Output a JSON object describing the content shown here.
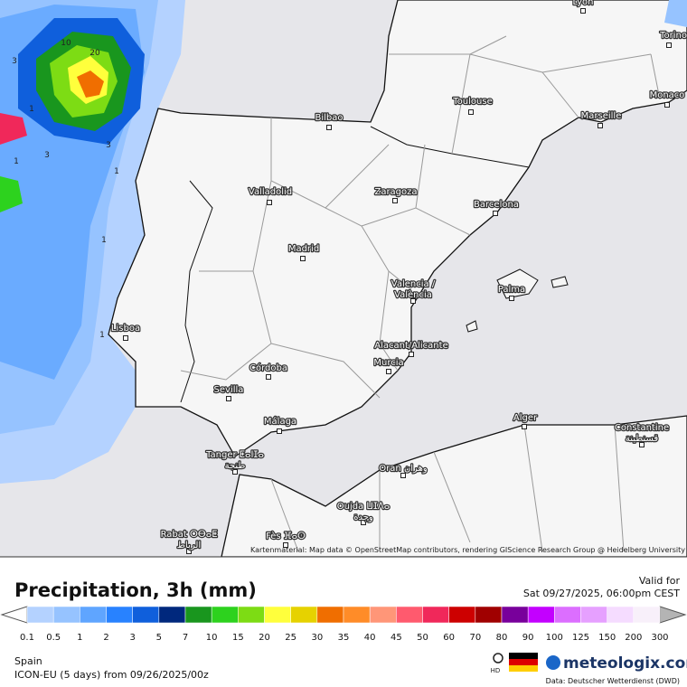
{
  "header": {
    "title": "Precipitation, 3h (mm)",
    "valid_label": "Valid for",
    "valid_time": "Sat 09/27/2025, 06:00pm CEST"
  },
  "map": {
    "cities": [
      {
        "lines": [
          "Lyon"
        ]
      },
      {
        "lines": [
          "Torino"
        ]
      },
      {
        "lines": [
          "Monaco"
        ]
      },
      {
        "lines": [
          "Toulouse"
        ]
      },
      {
        "lines": [
          "Marseille"
        ]
      },
      {
        "lines": [
          "Bilbao"
        ]
      },
      {
        "lines": [
          "Valladolid"
        ]
      },
      {
        "lines": [
          "Zaragoza"
        ]
      },
      {
        "lines": [
          "Barcelona"
        ]
      },
      {
        "lines": [
          "Madrid"
        ]
      },
      {
        "lines": [
          "Valencia /",
          "València"
        ]
      },
      {
        "lines": [
          "Palma"
        ]
      },
      {
        "lines": [
          "Lisboa"
        ]
      },
      {
        "lines": [
          "Alacant/Alicante"
        ]
      },
      {
        "lines": [
          "Murcia"
        ]
      },
      {
        "lines": [
          "Córdoba"
        ]
      },
      {
        "lines": [
          "Sevilla"
        ]
      },
      {
        "lines": [
          "Málaga"
        ]
      },
      {
        "lines": [
          "Alger"
        ]
      },
      {
        "lines": [
          "Constantine",
          "قسنطينة"
        ]
      },
      {
        "lines": [
          "Tanger ⵟⴰⵏⵊⴰ",
          "طنجة"
        ]
      },
      {
        "lines": [
          "Oran وهران"
        ]
      },
      {
        "lines": [
          "Oujda ⵡⵊⴷⴰ",
          "وجدة"
        ]
      },
      {
        "lines": [
          "Rabat ⵔⴱⴰⵟ",
          "الرباط"
        ]
      },
      {
        "lines": [
          "Fès ⴼⴰⵙ"
        ]
      }
    ],
    "contour_labels": [
      10,
      20,
      3,
      1,
      3,
      1,
      3,
      1,
      1,
      1
    ],
    "attribution": "Kartenmaterial: Map data © OpenStreetMap contributors, rendering GIScience Research Group @ Heidelberg University"
  },
  "legend": {
    "labels": [
      0.1,
      0.5,
      1,
      2,
      3,
      5,
      7,
      10,
      15,
      20,
      25,
      30,
      35,
      40,
      45,
      50,
      60,
      70,
      80,
      90,
      100,
      125,
      150,
      200,
      300
    ],
    "colors": [
      "#b4d2ff",
      "#96c3ff",
      "#5fa5ff",
      "#2882ff",
      "#0f5fdc",
      "#00287d",
      "#19961e",
      "#2dd21e",
      "#7ddc14",
      "#ffff3c",
      "#e6d200",
      "#f06e00",
      "#ff8c28",
      "#ff9678",
      "#ff5a6e",
      "#f0285a",
      "#cd0000",
      "#a00000",
      "#78009b",
      "#c300ff",
      "#dc6eff",
      "#e6a0ff",
      "#f5dcff",
      "#f8f0fa"
    ],
    "under_color": "#ffffff",
    "over_color": "#b4b4b4"
  },
  "footer": {
    "region": "Spain",
    "model": "ICON-EU (5 days) from 09/26/2025/00z",
    "hd": "HD",
    "brand": "meteologix.com",
    "source": "Data: Deutscher Wetterdienst (DWD)"
  }
}
